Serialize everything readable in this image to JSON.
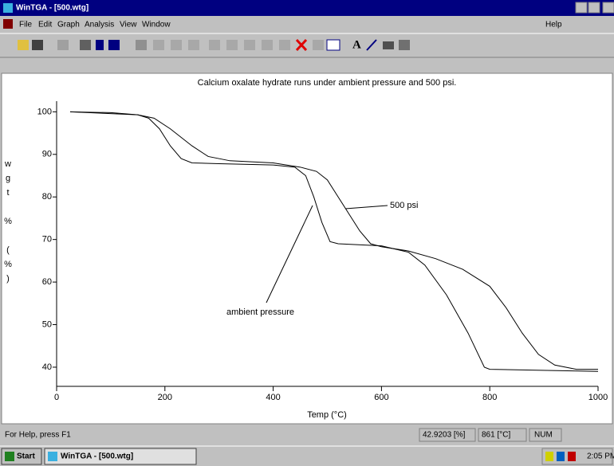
{
  "window": {
    "title": "WinTGA - [500.wtg]"
  },
  "menu": [
    "File",
    "Edit",
    "Graph",
    "Analysis",
    "View",
    "Window",
    "Help"
  ],
  "chart_data": {
    "type": "line",
    "title": "Calcium oxalate hydrate runs under ambient pressure and 500 psi.",
    "xlabel": "Temp (°C)",
    "ylabel": "wgt % (%)",
    "xlim": [
      0,
      1000
    ],
    "xticks": [
      0,
      200,
      400,
      600,
      800,
      1000
    ],
    "ylim": [
      35.5,
      102.5
    ],
    "yticks": [
      40,
      50,
      60,
      70,
      80,
      90,
      100
    ],
    "series": [
      {
        "name": "ambient pressure",
        "color": "#000000",
        "x": [
          25,
          100,
          150,
          170,
          190,
          210,
          230,
          250,
          300,
          400,
          440,
          460,
          475,
          490,
          505,
          520,
          600,
          650,
          680,
          720,
          760,
          790,
          800,
          1000
        ],
        "values": [
          100,
          99.8,
          99.3,
          98.5,
          96,
          92,
          89,
          88,
          87.8,
          87.5,
          87,
          85,
          80,
          74,
          69.5,
          69,
          68.5,
          67,
          64,
          57,
          48,
          40,
          39.5,
          39
        ]
      },
      {
        "name": "500 psi",
        "color": "#000000",
        "x": [
          25,
          150,
          180,
          210,
          250,
          280,
          320,
          400,
          450,
          480,
          500,
          520,
          540,
          560,
          580,
          600,
          650,
          700,
          750,
          800,
          830,
          860,
          890,
          920,
          960,
          1000
        ],
        "values": [
          100,
          99.3,
          98.5,
          96,
          92,
          89.5,
          88.5,
          88,
          87,
          86,
          84,
          80,
          76,
          72,
          69,
          68.3,
          67.3,
          65.5,
          63,
          59,
          54,
          48,
          43,
          40.5,
          39.5,
          39.5
        ]
      }
    ]
  },
  "status_bar": [
    "For Help, press F1",
    "42.9203 [%]",
    "861 [°C]",
    "NUM"
  ],
  "taskbar": {
    "start": "Start",
    "task": "WinTGA - [500.wtg]",
    "clock": "2:05 PM"
  }
}
